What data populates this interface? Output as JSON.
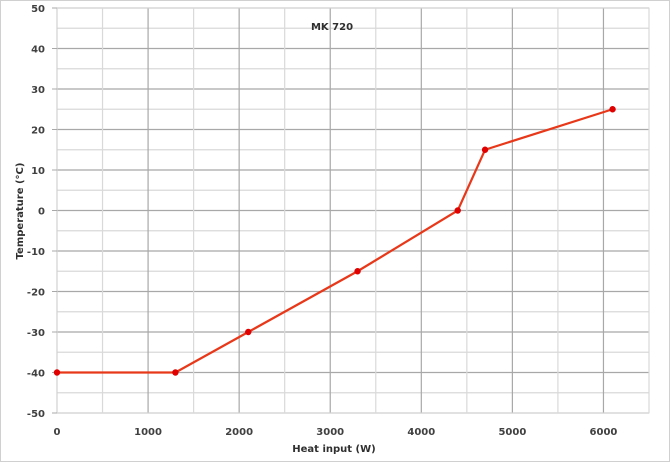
{
  "chart_data": {
    "type": "line",
    "title": "MK 720",
    "xlabel": "Heat input (W)",
    "ylabel": "Temperature (°C)",
    "xlim": [
      0,
      6500
    ],
    "ylim": [
      -50,
      50
    ],
    "xticks": [
      0,
      1000,
      2000,
      3000,
      4000,
      5000,
      6000
    ],
    "yticks": [
      50,
      40,
      30,
      20,
      10,
      0,
      -10,
      -20,
      -30,
      -40,
      -50
    ],
    "grid": true,
    "legend": "none",
    "series": [
      {
        "name": "MK 720",
        "color": "#e8381a",
        "x": [
          0,
          1300,
          2100,
          3300,
          4400,
          4700,
          6100
        ],
        "y": [
          -40,
          -40,
          -30,
          -15,
          0,
          15,
          25
        ]
      }
    ]
  },
  "colors": {
    "major_grid": "#a8a8a8",
    "minor_grid": "#d9d9d9",
    "line": "#e8381a",
    "marker": "#e00000"
  }
}
